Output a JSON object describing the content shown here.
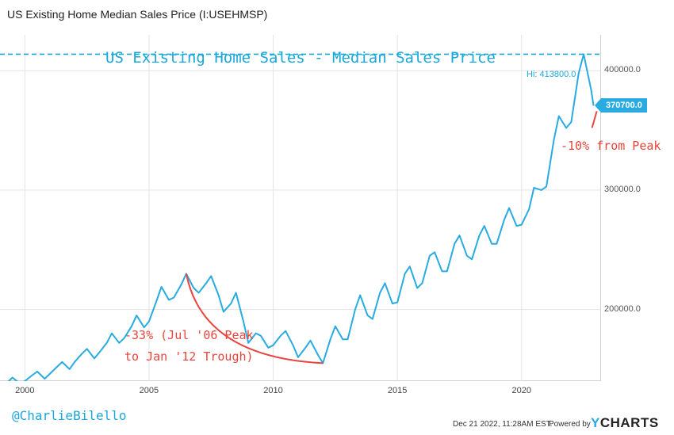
{
  "header": {
    "title": "US Existing Home Median Sales Price (I:USEHMSP)"
  },
  "chart_data": {
    "type": "line",
    "title": "US Existing Home Sales - Median Sales Price",
    "x_range": [
      1999.0,
      2023.2
    ],
    "y_range": [
      140000,
      430000
    ],
    "y_ticks": [
      "200000.0",
      "300000.0",
      "400000.0"
    ],
    "y_tick_values": [
      200000,
      300000,
      400000
    ],
    "x_ticks": [
      "2000",
      "2005",
      "2010",
      "2015",
      "2020"
    ],
    "x_tick_values": [
      2000,
      2005,
      2010,
      2015,
      2020
    ],
    "series": [
      {
        "name": "US Existing Home Median Sales Price",
        "color": "#29abe2",
        "x": [
          1999.0,
          1999.3,
          1999.5,
          1999.8,
          2000.0,
          2000.3,
          2000.5,
          2000.8,
          2001.0,
          2001.3,
          2001.5,
          2001.8,
          2002.0,
          2002.3,
          2002.5,
          2002.8,
          2003.0,
          2003.3,
          2003.5,
          2003.8,
          2004.0,
          2004.3,
          2004.5,
          2004.8,
          2005.0,
          2005.3,
          2005.5,
          2005.8,
          2006.0,
          2006.3,
          2006.5,
          2006.8,
          2007.0,
          2007.3,
          2007.5,
          2007.8,
          2008.0,
          2008.3,
          2008.5,
          2008.8,
          2009.0,
          2009.3,
          2009.5,
          2009.8,
          2010.0,
          2010.3,
          2010.5,
          2010.8,
          2011.0,
          2011.3,
          2011.5,
          2011.8,
          2012.0,
          2012.3,
          2012.5,
          2012.8,
          2013.0,
          2013.3,
          2013.5,
          2013.8,
          2014.0,
          2014.3,
          2014.5,
          2014.8,
          2015.0,
          2015.3,
          2015.5,
          2015.8,
          2016.0,
          2016.3,
          2016.5,
          2016.8,
          2017.0,
          2017.3,
          2017.5,
          2017.8,
          2018.0,
          2018.3,
          2018.5,
          2018.8,
          2019.0,
          2019.3,
          2019.5,
          2019.8,
          2020.0,
          2020.3,
          2020.5,
          2020.8,
          2021.0,
          2021.3,
          2021.5,
          2021.8,
          2022.0,
          2022.3,
          2022.5,
          2022.8,
          2022.9
        ],
        "values": [
          133000,
          139000,
          143000,
          138000,
          140000,
          145000,
          148000,
          142000,
          146000,
          152000,
          156000,
          150000,
          156000,
          163000,
          167000,
          159000,
          164000,
          172000,
          180000,
          172000,
          176000,
          186000,
          195000,
          185000,
          190000,
          207000,
          219000,
          208000,
          210000,
          221000,
          230000,
          218000,
          214000,
          222000,
          228000,
          212000,
          198000,
          205000,
          214000,
          190000,
          172000,
          180000,
          178000,
          168000,
          170000,
          178000,
          182000,
          170000,
          160000,
          168000,
          174000,
          162000,
          155000,
          175000,
          186000,
          175000,
          175000,
          200000,
          212000,
          195000,
          192000,
          214000,
          222000,
          205000,
          206000,
          230000,
          236000,
          218000,
          222000,
          245000,
          248000,
          232000,
          232000,
          255000,
          262000,
          245000,
          242000,
          262000,
          270000,
          255000,
          255000,
          275000,
          285000,
          270000,
          271000,
          284000,
          302000,
          300000,
          303000,
          342000,
          362000,
          352000,
          357000,
          398000,
          413800,
          384000,
          370700
        ]
      }
    ],
    "hi_label": "Hi: 413800.0",
    "hi_value": 413800,
    "last_value": 370700,
    "last_label": "370700.0",
    "annotations": {
      "peak_drop": "-10% from Peak",
      "crash_line1": "-33% (Jul '06 Peak",
      "crash_line2": "to Jan '12 Trough)",
      "crash_from": [
        2006.5,
        230000
      ],
      "crash_to": [
        2012.0,
        155000
      ]
    }
  },
  "watermark": "@CharlieBilello",
  "footer": {
    "date": "Dec 21 2022, 11:28AM EST.",
    "powered": "Powered by",
    "logo_y": "Y",
    "logo_rest": "CHARTS"
  }
}
